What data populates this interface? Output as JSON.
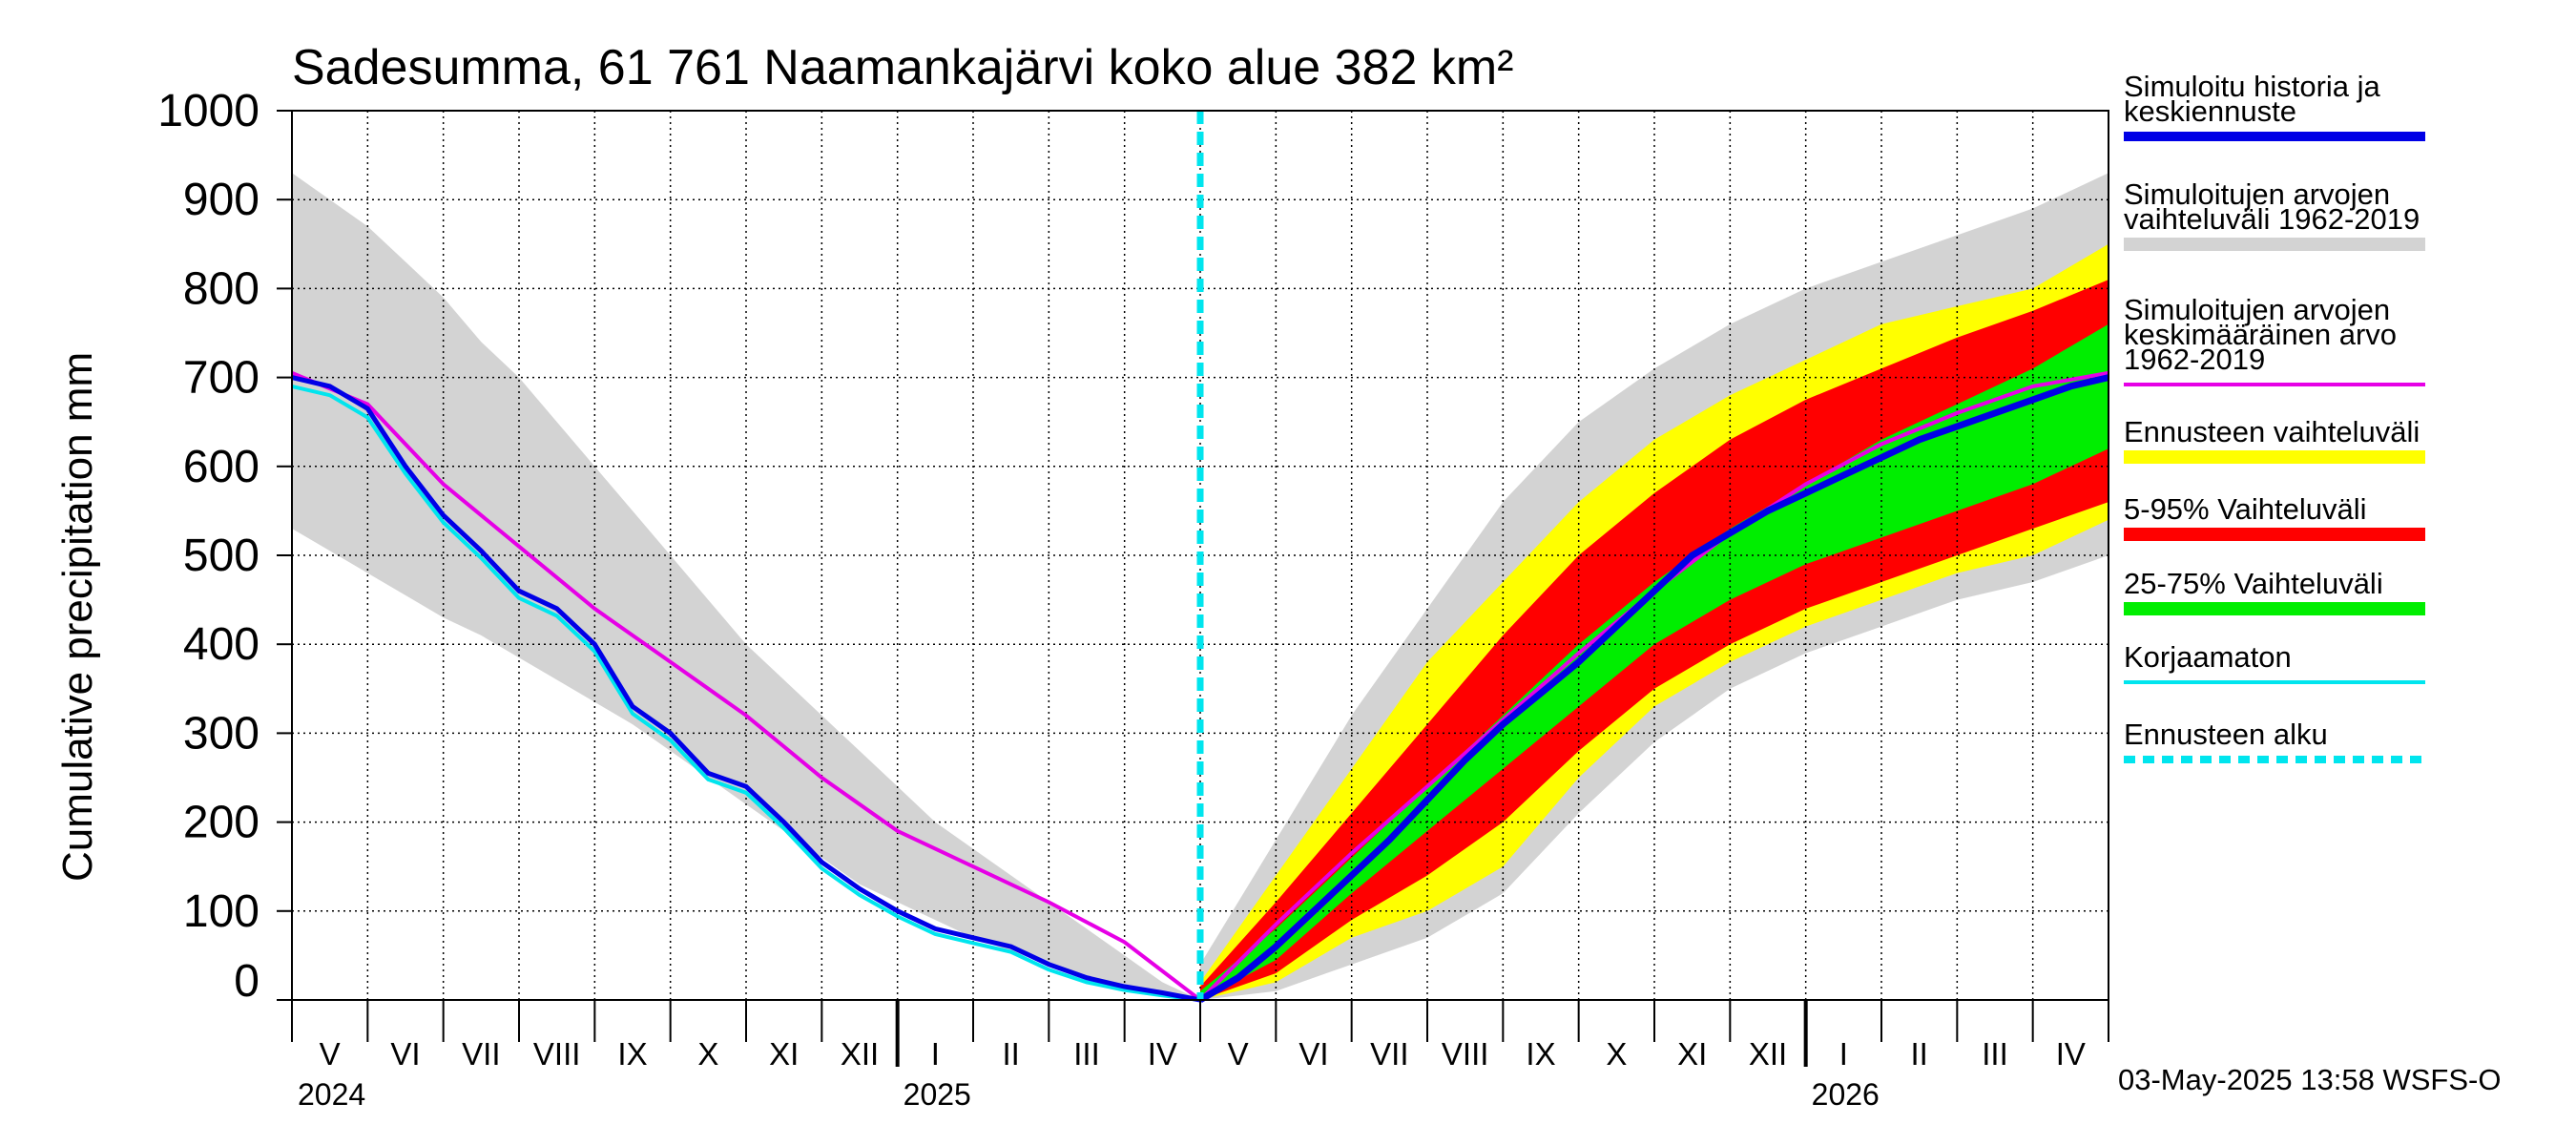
{
  "chart_data": {
    "type": "area",
    "title": "Sadesumma, 61 761 Naamankajärvi koko alue 382 km²",
    "ylabel": "Cumulative precipitation   mm",
    "ylim": [
      0,
      1000
    ],
    "yticks": [
      0,
      100,
      200,
      300,
      400,
      500,
      600,
      700,
      800,
      900,
      1000
    ],
    "x_start": "2024-05-01",
    "x_end": "2026-05-31",
    "forecast_start": "2025-05-01",
    "months": [
      "V",
      "VI",
      "VII",
      "VIII",
      "IX",
      "X",
      "XI",
      "XII",
      "I",
      "II",
      "III",
      "IV",
      "V",
      "VI",
      "VII",
      "VIII",
      "IX",
      "X",
      "XI",
      "XII",
      "I",
      "II",
      "III",
      "IV"
    ],
    "years": [
      "2024",
      "2025",
      "2026"
    ],
    "footer": "03-May-2025 13:58 WSFS-O",
    "colors": {
      "history": "#0000e6",
      "hist_range": "#d3d3d3",
      "mean": "#e600e6",
      "forecast_range": "#ffff00",
      "p5_95": "#ff0000",
      "p25_75": "#00ee00",
      "uncorrected": "#00e5ee",
      "forecast_start": "#00e5ee"
    },
    "legend": [
      {
        "key": "history",
        "lines": [
          "Simuloitu historia ja",
          "keskiennuste"
        ]
      },
      {
        "key": "hist_range",
        "lines": [
          "Simuloitujen arvojen",
          "vaihteluväli 1962-2019"
        ]
      },
      {
        "key": "mean",
        "lines": [
          "Simuloitujen arvojen",
          "keskimääräinen arvo",
          "   1962-2019"
        ]
      },
      {
        "key": "forecast_range",
        "lines": [
          "Ennusteen vaihteluväli"
        ]
      },
      {
        "key": "p5_95",
        "lines": [
          "5-95% Vaihteluväli"
        ]
      },
      {
        "key": "p25_75",
        "lines": [
          "25-75% Vaihteluväli"
        ]
      },
      {
        "key": "uncorrected",
        "lines": [
          "Korjaamaton"
        ]
      },
      {
        "key": "forecast_start",
        "lines": [
          "Ennusteen alku"
        ]
      }
    ],
    "series": {
      "hist_range_upper": [
        [
          0,
          930
        ],
        [
          0.5,
          900
        ],
        [
          1,
          870
        ],
        [
          1.5,
          830
        ],
        [
          2,
          790
        ],
        [
          2.5,
          740
        ],
        [
          3,
          700
        ],
        [
          3.5,
          650
        ],
        [
          4,
          600
        ],
        [
          4.5,
          550
        ],
        [
          5,
          500
        ],
        [
          5.5,
          450
        ],
        [
          6,
          400
        ],
        [
          6.5,
          360
        ],
        [
          7,
          320
        ],
        [
          7.5,
          280
        ],
        [
          8,
          240
        ],
        [
          8.5,
          200
        ],
        [
          9,
          170
        ],
        [
          9.5,
          140
        ],
        [
          10,
          110
        ],
        [
          10.5,
          80
        ],
        [
          11,
          50
        ],
        [
          11.5,
          20
        ],
        [
          12,
          0
        ]
      ],
      "hist_range_lower": [
        [
          0,
          530
        ],
        [
          0.5,
          505
        ],
        [
          1,
          480
        ],
        [
          1.5,
          455
        ],
        [
          2,
          430
        ],
        [
          2.5,
          410
        ],
        [
          3,
          385
        ],
        [
          3.5,
          360
        ],
        [
          4,
          335
        ],
        [
          4.5,
          310
        ],
        [
          5,
          280
        ],
        [
          5.5,
          250
        ],
        [
          6,
          220
        ],
        [
          6.5,
          190
        ],
        [
          7,
          160
        ],
        [
          7.5,
          130
        ],
        [
          8,
          110
        ],
        [
          8.5,
          90
        ],
        [
          9,
          70
        ],
        [
          9.5,
          55
        ],
        [
          10,
          40
        ],
        [
          10.5,
          25
        ],
        [
          11,
          15
        ],
        [
          11.5,
          5
        ],
        [
          12,
          0
        ]
      ],
      "history": [
        [
          0,
          700
        ],
        [
          0.5,
          690
        ],
        [
          1,
          665
        ],
        [
          1.5,
          600
        ],
        [
          2,
          545
        ],
        [
          2.5,
          505
        ],
        [
          3,
          460
        ],
        [
          3.5,
          440
        ],
        [
          4,
          400
        ],
        [
          4.5,
          330
        ],
        [
          5,
          300
        ],
        [
          5.5,
          255
        ],
        [
          6,
          240
        ],
        [
          6.5,
          200
        ],
        [
          7,
          155
        ],
        [
          7.5,
          125
        ],
        [
          8,
          100
        ],
        [
          8.5,
          80
        ],
        [
          9,
          70
        ],
        [
          9.5,
          60
        ],
        [
          10,
          40
        ],
        [
          10.5,
          25
        ],
        [
          11,
          15
        ],
        [
          11.5,
          8
        ],
        [
          12,
          0
        ]
      ],
      "uncorrected": [
        [
          0,
          690
        ],
        [
          0.5,
          680
        ],
        [
          1,
          655
        ],
        [
          1.5,
          592
        ],
        [
          2,
          537
        ],
        [
          2.5,
          497
        ],
        [
          3,
          452
        ],
        [
          3.5,
          432
        ],
        [
          4,
          392
        ],
        [
          4.5,
          322
        ],
        [
          5,
          292
        ],
        [
          5.5,
          248
        ],
        [
          6,
          233
        ],
        [
          6.5,
          193
        ],
        [
          7,
          148
        ],
        [
          7.5,
          118
        ],
        [
          8,
          94
        ],
        [
          8.5,
          74
        ],
        [
          9,
          64
        ],
        [
          9.5,
          54
        ],
        [
          10,
          34
        ],
        [
          10.5,
          20
        ],
        [
          11,
          11
        ],
        [
          11.5,
          5
        ],
        [
          12,
          0
        ]
      ],
      "mean": [
        [
          0,
          705
        ],
        [
          1,
          670
        ],
        [
          2,
          580
        ],
        [
          3,
          510
        ],
        [
          4,
          440
        ],
        [
          5,
          380
        ],
        [
          6,
          320
        ],
        [
          7,
          250
        ],
        [
          8,
          190
        ],
        [
          9,
          150
        ],
        [
          10,
          110
        ],
        [
          11,
          65
        ],
        [
          12,
          0
        ],
        [
          13,
          85
        ],
        [
          14,
          165
        ],
        [
          15,
          240
        ],
        [
          16,
          315
        ],
        [
          17,
          390
        ],
        [
          18,
          460
        ],
        [
          19,
          525
        ],
        [
          20,
          580
        ],
        [
          21,
          625
        ],
        [
          22,
          660
        ],
        [
          23,
          690
        ],
        [
          24,
          705
        ]
      ],
      "forecast_mean": [
        [
          12,
          0
        ],
        [
          12.5,
          25
        ],
        [
          13,
          60
        ],
        [
          13.5,
          100
        ],
        [
          14,
          140
        ],
        [
          14.5,
          180
        ],
        [
          15,
          225
        ],
        [
          15.5,
          270
        ],
        [
          16,
          310
        ],
        [
          16.5,
          345
        ],
        [
          17,
          380
        ],
        [
          17.5,
          420
        ],
        [
          18,
          460
        ],
        [
          18.5,
          500
        ],
        [
          19,
          525
        ],
        [
          19.5,
          550
        ],
        [
          20,
          570
        ],
        [
          20.5,
          590
        ],
        [
          21,
          610
        ],
        [
          21.5,
          630
        ],
        [
          22,
          645
        ],
        [
          22.5,
          660
        ],
        [
          23,
          675
        ],
        [
          23.5,
          690
        ],
        [
          24,
          700
        ]
      ],
      "fc_range_upper": [
        [
          12,
          20
        ],
        [
          13,
          140
        ],
        [
          14,
          260
        ],
        [
          15,
          380
        ],
        [
          16,
          470
        ],
        [
          17,
          560
        ],
        [
          18,
          630
        ],
        [
          19,
          680
        ],
        [
          20,
          720
        ],
        [
          21,
          760
        ],
        [
          22,
          780
        ],
        [
          23,
          800
        ],
        [
          24,
          850
        ]
      ],
      "fc_range_lower": [
        [
          12,
          0
        ],
        [
          13,
          20
        ],
        [
          14,
          70
        ],
        [
          15,
          100
        ],
        [
          16,
          150
        ],
        [
          17,
          250
        ],
        [
          18,
          330
        ],
        [
          19,
          380
        ],
        [
          20,
          420
        ],
        [
          21,
          450
        ],
        [
          22,
          480
        ],
        [
          23,
          500
        ],
        [
          24,
          540
        ]
      ],
      "p5_95_upper": [
        [
          12,
          15
        ],
        [
          13,
          110
        ],
        [
          14,
          210
        ],
        [
          15,
          310
        ],
        [
          16,
          410
        ],
        [
          17,
          500
        ],
        [
          18,
          570
        ],
        [
          19,
          630
        ],
        [
          20,
          675
        ],
        [
          21,
          710
        ],
        [
          22,
          745
        ],
        [
          23,
          775
        ],
        [
          24,
          810
        ]
      ],
      "p5_95_lower": [
        [
          12,
          0
        ],
        [
          13,
          30
        ],
        [
          14,
          90
        ],
        [
          15,
          140
        ],
        [
          16,
          200
        ],
        [
          17,
          280
        ],
        [
          18,
          350
        ],
        [
          19,
          400
        ],
        [
          20,
          440
        ],
        [
          21,
          470
        ],
        [
          22,
          500
        ],
        [
          23,
          530
        ],
        [
          24,
          560
        ]
      ],
      "p25_75_upper": [
        [
          12,
          10
        ],
        [
          13,
          80
        ],
        [
          14,
          160
        ],
        [
          15,
          240
        ],
        [
          16,
          320
        ],
        [
          17,
          400
        ],
        [
          18,
          470
        ],
        [
          19,
          530
        ],
        [
          20,
          580
        ],
        [
          21,
          630
        ],
        [
          22,
          670
        ],
        [
          23,
          710
        ],
        [
          24,
          760
        ]
      ],
      "p25_75_lower": [
        [
          12,
          0
        ],
        [
          13,
          45
        ],
        [
          14,
          120
        ],
        [
          15,
          190
        ],
        [
          16,
          260
        ],
        [
          17,
          330
        ],
        [
          18,
          400
        ],
        [
          19,
          450
        ],
        [
          20,
          490
        ],
        [
          21,
          520
        ],
        [
          22,
          550
        ],
        [
          23,
          580
        ],
        [
          24,
          620
        ]
      ],
      "hist_fc_upper": [
        [
          12,
          40
        ],
        [
          13,
          180
        ],
        [
          14,
          320
        ],
        [
          15,
          440
        ],
        [
          16,
          560
        ],
        [
          17,
          650
        ],
        [
          18,
          710
        ],
        [
          19,
          760
        ],
        [
          20,
          800
        ],
        [
          21,
          830
        ],
        [
          22,
          860
        ],
        [
          23,
          890
        ],
        [
          24,
          930
        ]
      ],
      "hist_fc_lower": [
        [
          12,
          0
        ],
        [
          13,
          10
        ],
        [
          14,
          40
        ],
        [
          15,
          70
        ],
        [
          16,
          120
        ],
        [
          17,
          210
        ],
        [
          18,
          290
        ],
        [
          19,
          350
        ],
        [
          20,
          390
        ],
        [
          21,
          420
        ],
        [
          22,
          450
        ],
        [
          23,
          470
        ],
        [
          24,
          500
        ]
      ]
    }
  }
}
